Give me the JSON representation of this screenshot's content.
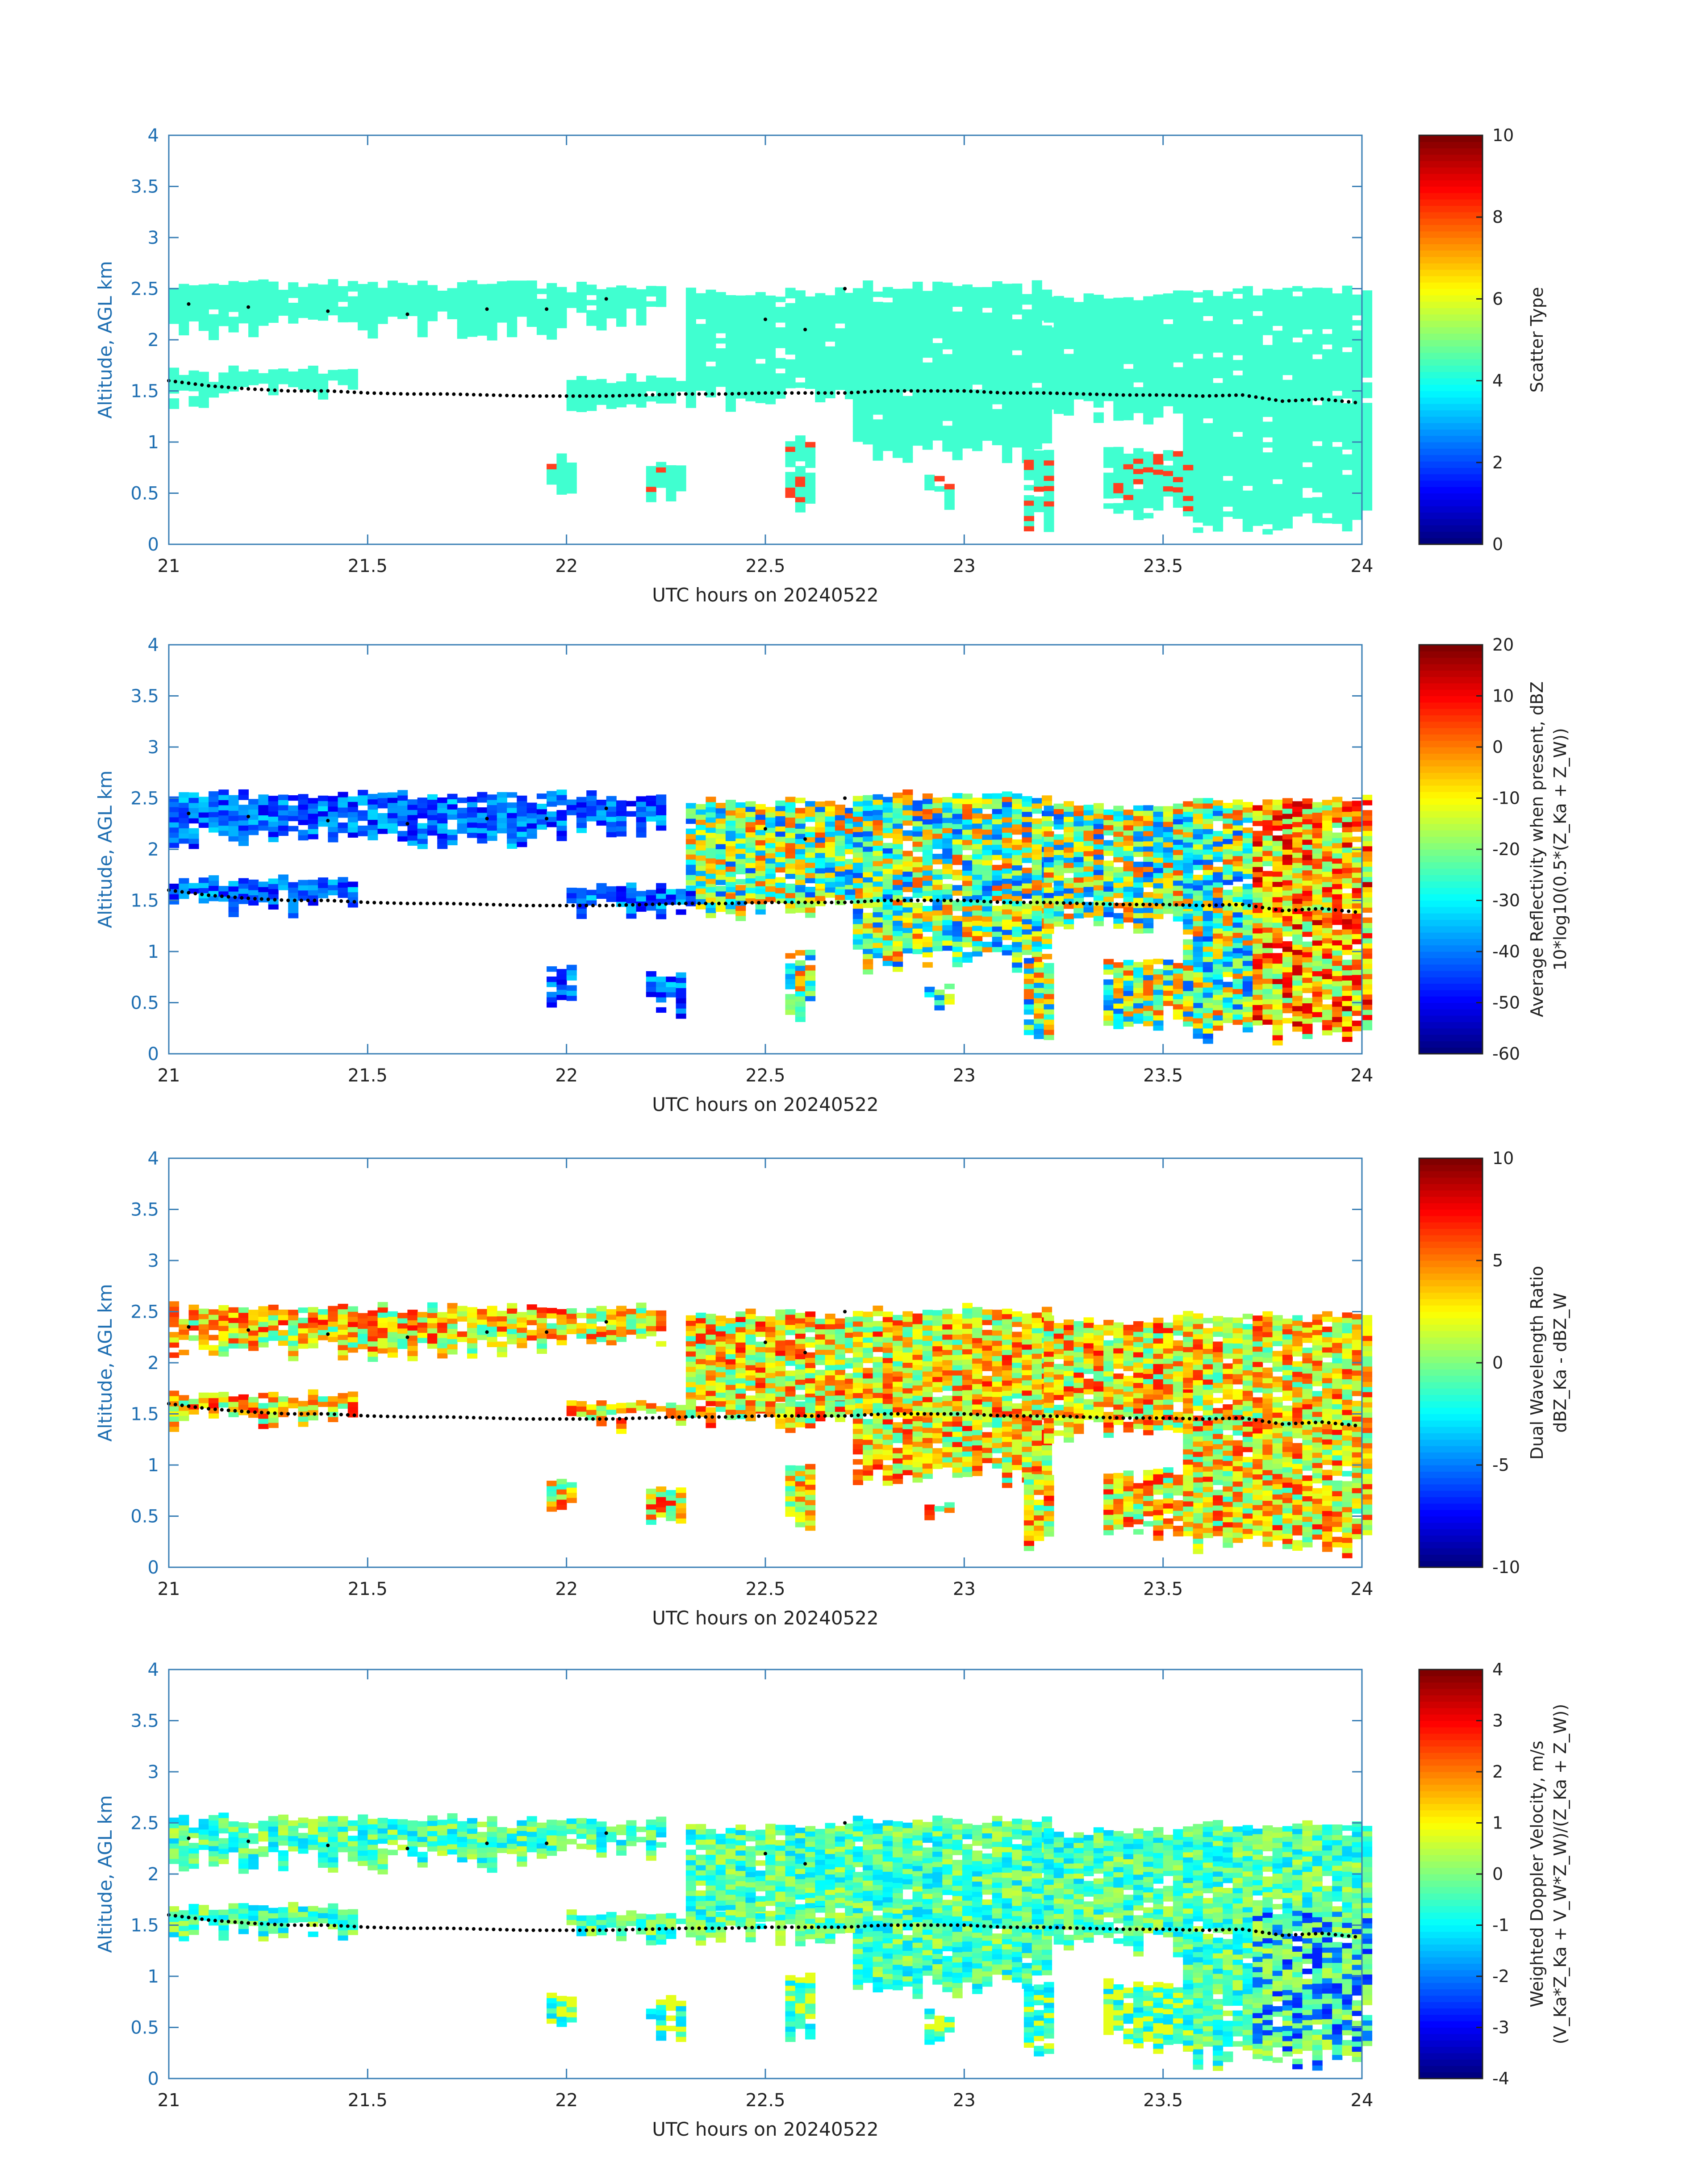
{
  "colors": {
    "axis": "#3a7fb5",
    "melting_layer_marker": "#000000",
    "scatter_type_cloud": "#40ffd0",
    "scatter_type_precip": "#ff4020"
  },
  "colormap": "jet",
  "chart_data": [
    {
      "type": "heatmap",
      "title": "",
      "xlabel": "UTC hours on 20240522",
      "ylabel": "Altitude, AGL km",
      "xlim": [
        21,
        24
      ],
      "ylim": [
        0,
        4
      ],
      "xticks": [
        "21",
        "21.5",
        "22",
        "22.5",
        "23",
        "23.5",
        "24"
      ],
      "yticks": [
        "0",
        "0.5",
        "1",
        "1.5",
        "2",
        "2.5",
        "3",
        "3.5",
        "4"
      ],
      "colorbar": {
        "label_lines": [
          "Scatter Type"
        ],
        "range": [
          0,
          10
        ],
        "ticks": [
          "0",
          "2",
          "4",
          "6",
          "8",
          "10"
        ]
      },
      "variable": "scatter_type"
    },
    {
      "type": "heatmap",
      "title": "",
      "xlabel": "UTC hours on 20240522",
      "ylabel": "Altitude, AGL km",
      "xlim": [
        21,
        24
      ],
      "ylim": [
        0,
        4
      ],
      "xticks": [
        "21",
        "21.5",
        "22",
        "22.5",
        "23",
        "23.5",
        "24"
      ],
      "yticks": [
        "0",
        "0.5",
        "1",
        "1.5",
        "2",
        "2.5",
        "3",
        "3.5",
        "4"
      ],
      "colorbar": {
        "label_lines": [
          "Average Reflectivity when present, dBZ",
          "10*log10(0.5*(Z_Ka + Z_W))"
        ],
        "range": [
          -60,
          20
        ],
        "ticks": [
          "-60",
          "-50",
          "-40",
          "-30",
          "-20",
          "-10",
          "0",
          "10",
          "20"
        ]
      },
      "variable": "reflectivity"
    },
    {
      "type": "heatmap",
      "title": "",
      "xlabel": "UTC hours on 20240522",
      "ylabel": "Altitude, AGL km",
      "xlim": [
        21,
        24
      ],
      "ylim": [
        0,
        4
      ],
      "xticks": [
        "21",
        "21.5",
        "22",
        "22.5",
        "23",
        "23.5",
        "24"
      ],
      "yticks": [
        "0",
        "0.5",
        "1",
        "1.5",
        "2",
        "2.5",
        "3",
        "3.5",
        "4"
      ],
      "colorbar": {
        "label_lines": [
          "Dual Wavelength Ratio",
          "dBZ_Ka - dBZ_W"
        ],
        "range": [
          -10,
          10
        ],
        "ticks": [
          "-10",
          "-5",
          "0",
          "5",
          "10"
        ]
      },
      "variable": "dwr"
    },
    {
      "type": "heatmap",
      "title": "",
      "xlabel": "UTC hours on 20240522",
      "ylabel": "Altitude, AGL km",
      "xlim": [
        21,
        24
      ],
      "ylim": [
        0,
        4
      ],
      "xticks": [
        "21",
        "21.5",
        "22",
        "22.5",
        "23",
        "23.5",
        "24"
      ],
      "yticks": [
        "0",
        "0.5",
        "1",
        "1.5",
        "2",
        "2.5",
        "3",
        "3.5",
        "4"
      ],
      "colorbar": {
        "label_lines": [
          "Weighted Doppler Velocity, m/s",
          "(V_Ka*Z_Ka + V_W*Z_W)/(Z_Ka + Z_W))"
        ],
        "range": [
          -4,
          4
        ],
        "ticks": [
          "-4",
          "-3",
          "-2",
          "-1",
          "0",
          "1",
          "2",
          "3",
          "4"
        ]
      },
      "variable": "velocity"
    }
  ],
  "cloud_layers": {
    "columns": [
      {
        "x0": 21.0,
        "x1": 21.98,
        "bottom": 2.12,
        "top": 2.52
      },
      {
        "x0": 22.0,
        "x1": 22.23,
        "bottom": 2.22,
        "top": 2.5
      },
      {
        "x0": 22.3,
        "x1": 22.72,
        "bottom": 1.55,
        "top": 2.45
      },
      {
        "x0": 22.72,
        "x1": 23.2,
        "bottom": 0.9,
        "top": 2.5
      },
      {
        "x0": 23.2,
        "x1": 23.55,
        "bottom": 1.3,
        "top": 2.4
      },
      {
        "x0": 23.55,
        "x1": 24.0,
        "bottom": 0.2,
        "top": 2.45
      }
    ],
    "lower_band": [
      {
        "x0": 21.0,
        "x1": 21.45,
        "bottom": 1.45,
        "top": 1.67
      },
      {
        "x0": 22.0,
        "x1": 22.72,
        "bottom": 1.42,
        "top": 1.6
      }
    ],
    "low_blobs": [
      {
        "x0": 21.95,
        "x1": 22.02,
        "bottom": 0.55,
        "top": 0.82
      },
      {
        "x0": 22.2,
        "x1": 22.28,
        "bottom": 0.45,
        "top": 0.75
      },
      {
        "x0": 22.55,
        "x1": 22.62,
        "bottom": 0.4,
        "top": 1.0
      },
      {
        "x0": 22.9,
        "x1": 22.97,
        "bottom": 0.45,
        "top": 0.6
      },
      {
        "x0": 23.15,
        "x1": 23.2,
        "bottom": 0.2,
        "top": 0.9
      },
      {
        "x0": 23.35,
        "x1": 23.55,
        "bottom": 0.35,
        "top": 0.9
      }
    ]
  },
  "melting_layer": {
    "x": [
      21.0,
      21.1,
      21.2,
      21.3,
      21.4,
      21.5,
      21.6,
      21.7,
      21.8,
      21.9,
      22.0,
      22.1,
      22.2,
      22.3,
      22.4,
      22.5,
      22.6,
      22.7,
      22.8,
      22.9,
      23.0,
      23.1,
      23.2,
      23.3,
      23.4,
      23.5,
      23.6,
      23.7,
      23.8,
      23.9,
      24.0
    ],
    "y": [
      1.6,
      1.55,
      1.52,
      1.5,
      1.5,
      1.48,
      1.47,
      1.47,
      1.46,
      1.45,
      1.45,
      1.45,
      1.46,
      1.47,
      1.47,
      1.48,
      1.48,
      1.48,
      1.5,
      1.5,
      1.5,
      1.48,
      1.48,
      1.47,
      1.46,
      1.46,
      1.45,
      1.46,
      1.4,
      1.42,
      1.38
    ]
  },
  "upper_marker": {
    "x": [
      21.05,
      21.2,
      21.4,
      21.6,
      21.8,
      21.95,
      22.1,
      22.5,
      22.6,
      22.7
    ],
    "y": [
      2.35,
      2.32,
      2.28,
      2.25,
      2.3,
      2.3,
      2.4,
      2.2,
      2.1,
      2.5
    ]
  }
}
